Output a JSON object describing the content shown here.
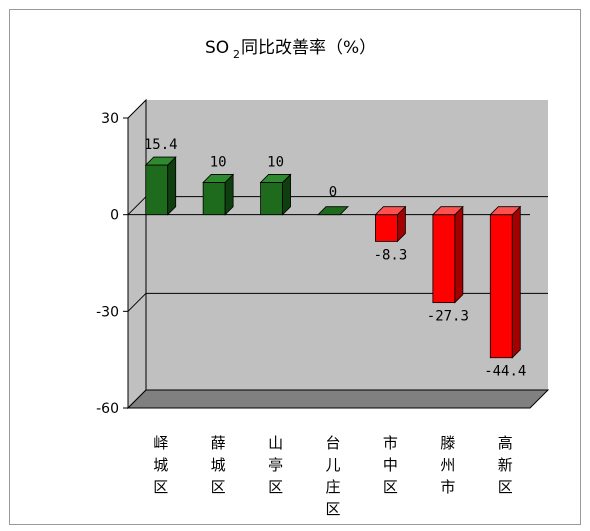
{
  "chart_data": {
    "type": "bar",
    "title_main": "SO",
    "title_sub": "2",
    "title_rest": "同比改善率（%）",
    "categories": [
      "峄城区",
      "薛城区",
      "山亭区",
      "台儿庄区",
      "市中区",
      "滕州市",
      "高新区"
    ],
    "values": [
      15.4,
      10,
      10,
      0,
      -8.3,
      -27.3,
      -44.4
    ],
    "data_labels": [
      "15.4",
      "10",
      "10",
      "0",
      "-8.3",
      "-27.3",
      "-44.4"
    ],
    "ylim": [
      -60,
      30
    ],
    "yticks": [
      30,
      0,
      -30,
      -60
    ],
    "ytick_labels": [
      "30",
      "0",
      "-30",
      "-60"
    ],
    "gridlines": [
      0,
      -30
    ],
    "colors": {
      "positive": "#1e6b1e",
      "positive_side": "#0f3f0f",
      "positive_top": "#2f8a2f",
      "negative": "#ff0000",
      "negative_side": "#a40000",
      "negative_top": "#ff5050",
      "wall": "#c0c0c0",
      "wall_dark": "#808080"
    }
  }
}
